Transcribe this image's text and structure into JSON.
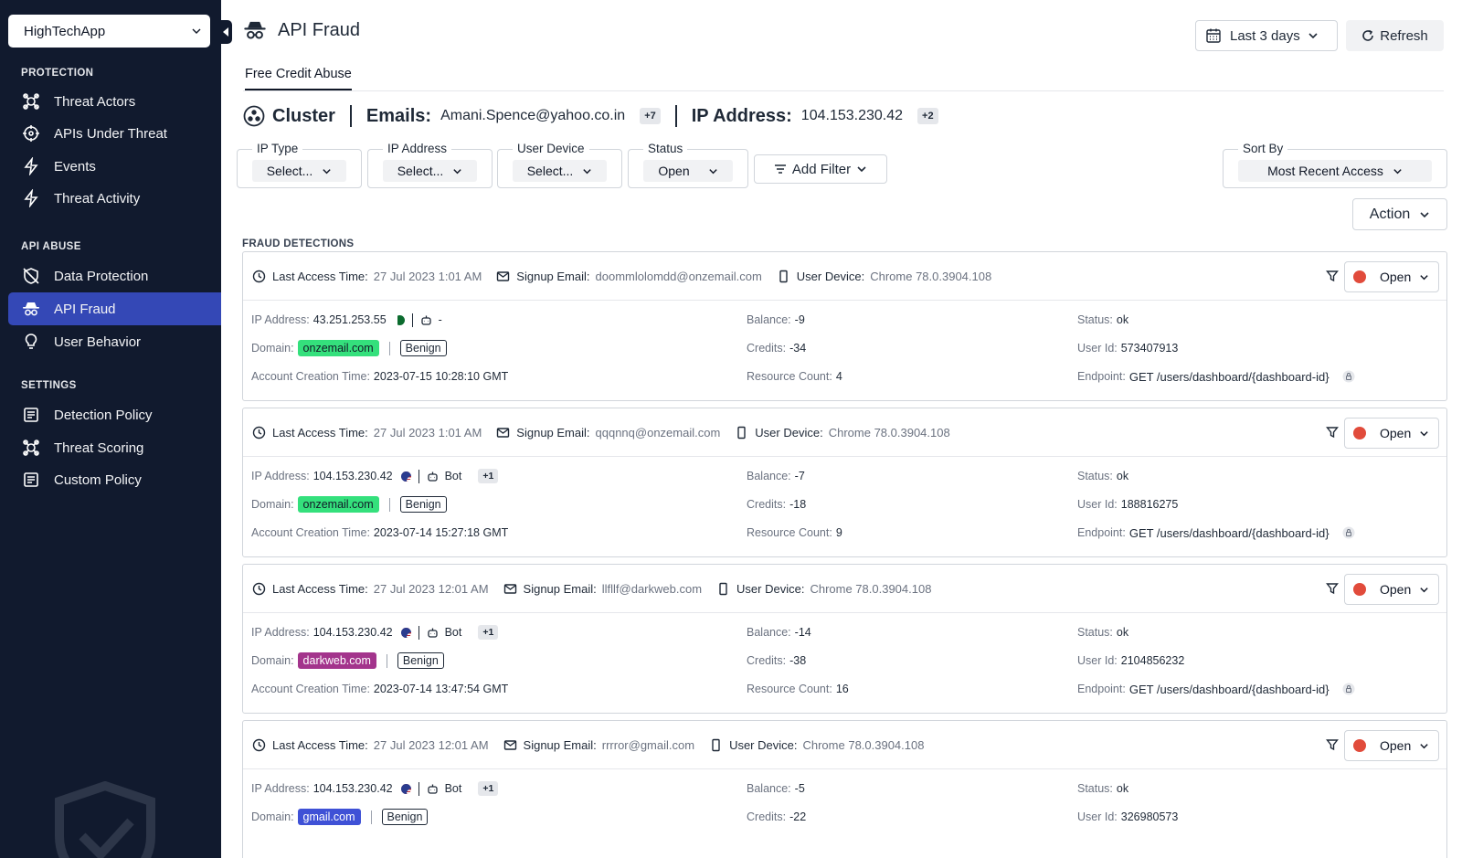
{
  "app_selector": {
    "value": "HighTechApp"
  },
  "sidebar": {
    "sections": [
      {
        "title": "PROTECTION",
        "items": [
          {
            "label": "Threat Actors",
            "icon": "target-icon"
          },
          {
            "label": "APIs Under Threat",
            "icon": "crosshair-icon"
          },
          {
            "label": "Events",
            "icon": "bolt-icon"
          },
          {
            "label": "Threat Activity",
            "icon": "bolt-icon"
          }
        ]
      },
      {
        "title": "API ABUSE",
        "items": [
          {
            "label": "Data Protection",
            "icon": "shield-off-icon"
          },
          {
            "label": "API Fraud",
            "icon": "spy-icon",
            "active": true
          },
          {
            "label": "User Behavior",
            "icon": "bulb-icon"
          }
        ]
      },
      {
        "title": "SETTINGS",
        "items": [
          {
            "label": "Detection Policy",
            "icon": "policy-icon"
          },
          {
            "label": "Threat Scoring",
            "icon": "target-icon"
          },
          {
            "label": "Custom Policy",
            "icon": "policy-icon"
          }
        ]
      }
    ]
  },
  "header": {
    "title": "API Fraud",
    "date_range": "Last 3 days",
    "refresh_label": "Refresh"
  },
  "tabs": [
    {
      "label": "Free Credit Abuse",
      "active": true
    }
  ],
  "cluster": {
    "label": "Cluster",
    "emails_key": "Emails:",
    "email": "Amani.Spence@yahoo.co.in",
    "email_more": "+7",
    "ip_key": "IP Address:",
    "ip": "104.153.230.42",
    "ip_more": "+2"
  },
  "filters": [
    {
      "label": "IP Type",
      "value": "Select..."
    },
    {
      "label": "IP Address",
      "value": "Select..."
    },
    {
      "label": "User Device",
      "value": "Select..."
    },
    {
      "label": "Status",
      "value": "Open"
    }
  ],
  "add_filter_label": "Add Filter",
  "sort": {
    "label": "Sort By",
    "value": "Most Recent Access"
  },
  "action_label": "Action",
  "section_title": "FRAUD DETECTIONS",
  "labels": {
    "last_access": "Last Access Time:",
    "signup_email": "Signup Email:",
    "user_device": "User Device:",
    "ip_address": "IP Address:",
    "domain": "Domain:",
    "account_creation": "Account Creation Time:",
    "balance": "Balance:",
    "credits": "Credits:",
    "resource_count": "Resource Count:",
    "status": "Status:",
    "user_id": "User Id:",
    "endpoint": "Endpoint:"
  },
  "detections": [
    {
      "last_access": "27 Jul 2023 1:01 AM",
      "signup_email": "doommlolomdd@onzemail.com",
      "user_device": "Chrome 78.0.3904.108",
      "status_select": "Open",
      "ip": "43.251.253.55",
      "flag": "PK",
      "ip_type": "-",
      "ip_extra": "",
      "domain": "onzemail.com",
      "domain_color": "#34e07c",
      "domain_text_color": "#111827",
      "classification": "Benign",
      "account_creation": "2023-07-15 10:28:10 GMT",
      "balance": "-9",
      "credits": "-34",
      "resource_count": "4",
      "status": "ok",
      "user_id": "573407913",
      "endpoint": "GET /users/dashboard/{dashboard-id}"
    },
    {
      "last_access": "27 Jul 2023 1:01 AM",
      "signup_email": "qqqnnq@onzemail.com",
      "user_device": "Chrome 78.0.3904.108",
      "status_select": "Open",
      "ip": "104.153.230.42",
      "flag": "US",
      "ip_type": "Bot",
      "ip_extra": "+1",
      "domain": "onzemail.com",
      "domain_color": "#34e07c",
      "domain_text_color": "#111827",
      "classification": "Benign",
      "account_creation": "2023-07-14 15:27:18 GMT",
      "balance": "-7",
      "credits": "-18",
      "resource_count": "9",
      "status": "ok",
      "user_id": "188816275",
      "endpoint": "GET /users/dashboard/{dashboard-id}"
    },
    {
      "last_access": "27 Jul 2023 12:01 AM",
      "signup_email": "llfllf@darkweb.com",
      "user_device": "Chrome 78.0.3904.108",
      "status_select": "Open",
      "ip": "104.153.230.42",
      "flag": "US",
      "ip_type": "Bot",
      "ip_extra": "+1",
      "domain": "darkweb.com",
      "domain_color": "#a3348c",
      "domain_text_color": "#ffffff",
      "classification": "Benign",
      "account_creation": "2023-07-14 13:47:54 GMT",
      "balance": "-14",
      "credits": "-38",
      "resource_count": "16",
      "status": "ok",
      "user_id": "2104856232",
      "endpoint": "GET /users/dashboard/{dashboard-id}"
    },
    {
      "last_access": "27 Jul 2023 12:01 AM",
      "signup_email": "rrrror@gmail.com",
      "user_device": "Chrome 78.0.3904.108",
      "status_select": "Open",
      "ip": "104.153.230.42",
      "flag": "US",
      "ip_type": "Bot",
      "ip_extra": "+1",
      "domain": "gmail.com",
      "domain_color": "#3f51d6",
      "domain_text_color": "#ffffff",
      "classification": "Benign",
      "account_creation": "",
      "balance": "-5",
      "credits": "-22",
      "resource_count": "",
      "status": "ok",
      "user_id": "326980573",
      "endpoint": ""
    }
  ]
}
